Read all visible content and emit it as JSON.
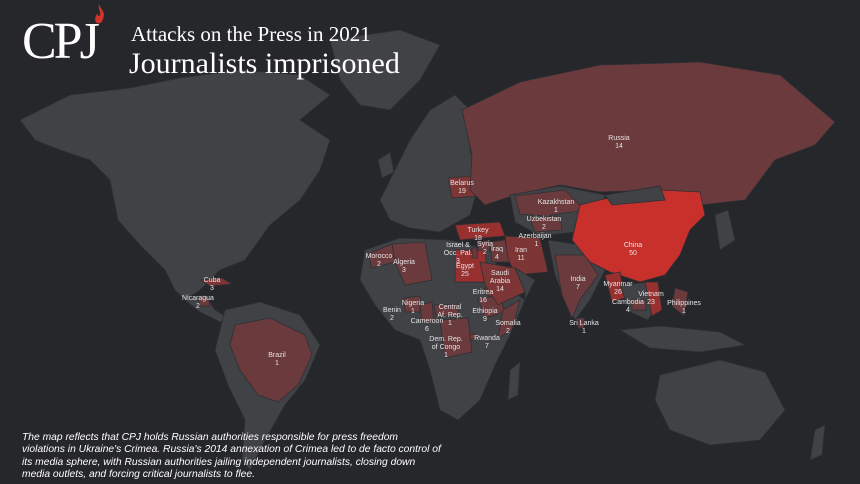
{
  "header": {
    "logo_text": "CPJ",
    "title": "Attacks on the Press in 2021",
    "subtitle": "Journalists imprisoned"
  },
  "footnote": "The map reflects that CPJ holds Russian authorities responsible for press freedom violations in Ukraine's Crimea. Russia's 2014 annexation of Crimea led to de facto control of its media sphere, with Russian authorities jailing independent journalists, closing down media outlets, and forcing critical journalists to flee.",
  "colors": {
    "background": "#26272b",
    "land": "#414246",
    "low": "#6b3a3d",
    "medium": "#7e3535",
    "high": "#983030",
    "highest": "#c8302c"
  },
  "countries": [
    {
      "name": "Russia",
      "count": "14"
    },
    {
      "name": "Belarus",
      "count": "19"
    },
    {
      "name": "Kazakhstan",
      "count": "1"
    },
    {
      "name": "Uzbekistan",
      "count": "2"
    },
    {
      "name": "Azerbaijan",
      "count": "1"
    },
    {
      "name": "Turkey",
      "count": "18"
    },
    {
      "name": "Syria",
      "count": "2"
    },
    {
      "name": "Iraq",
      "count": "4"
    },
    {
      "name": "Iran",
      "count": "11"
    },
    {
      "name": "Israel & Occ. Pal.",
      "count": "3"
    },
    {
      "name": "Egypt",
      "count": "25"
    },
    {
      "name": "Saudi Arabia",
      "count": "14"
    },
    {
      "name": "China",
      "count": "50"
    },
    {
      "name": "India",
      "count": "7"
    },
    {
      "name": "Myanmar",
      "count": "26"
    },
    {
      "name": "Vietnam",
      "count": "23"
    },
    {
      "name": "Cambodia",
      "count": "4"
    },
    {
      "name": "Philippines",
      "count": "1"
    },
    {
      "name": "Sri Lanka",
      "count": "1"
    },
    {
      "name": "Morocco",
      "count": "2"
    },
    {
      "name": "Algeria",
      "count": "3"
    },
    {
      "name": "Eritrea",
      "count": "16"
    },
    {
      "name": "Ethiopia",
      "count": "9"
    },
    {
      "name": "Somalia",
      "count": "2"
    },
    {
      "name": "Rwanda",
      "count": "7"
    },
    {
      "name": "Dem. Rep. of Congo",
      "count": "1"
    },
    {
      "name": "Central Af. Rep.",
      "count": "1"
    },
    {
      "name": "Cameroon",
      "count": "6"
    },
    {
      "name": "Nigeria",
      "count": "1"
    },
    {
      "name": "Benin",
      "count": "2"
    },
    {
      "name": "Cuba",
      "count": "3"
    },
    {
      "name": "Nicaragua",
      "count": "2"
    },
    {
      "name": "Brazil",
      "count": "1"
    }
  ]
}
